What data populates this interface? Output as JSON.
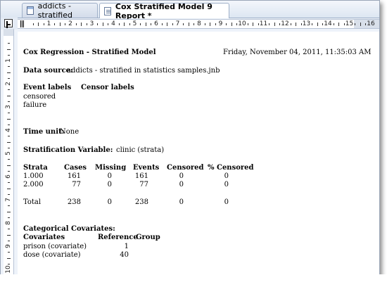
{
  "tabs": [
    {
      "label": "addicts - stratified",
      "active": false
    },
    {
      "label": "Cox Stratified Model 9 Report *",
      "active": true
    }
  ],
  "ruler": {
    "h_numbers": [
      "1",
      "2",
      "3",
      "4",
      "5",
      "6",
      "7",
      "8",
      "9",
      "10",
      "11",
      "12",
      "13",
      "14",
      "15",
      "16"
    ],
    "v_numbers": [
      "1",
      "2",
      "3",
      "4",
      "5",
      "6",
      "7",
      "8",
      "9",
      "10"
    ]
  },
  "report": {
    "title": "Cox Regression - Stratified Model",
    "timestamp": "Friday, November 04, 2011, 11:35:03 AM",
    "data_source_label": "Data source:",
    "data_source_value": "addicts - stratified in statistics samples.jnb",
    "event_labels_header": "Event labels",
    "censor_labels_header": "Censor labels",
    "event_labels": [
      "censored",
      "failure"
    ],
    "time_unit_label": "Time unit:",
    "time_unit_value": "None",
    "strat_var_label": "Stratification Variable:",
    "strat_var_value": "clinic (strata)",
    "strata_table": {
      "headers": [
        "Strata",
        "Cases",
        "Missing",
        "Events",
        "Censored",
        "% Censored"
      ],
      "rows": [
        [
          "1.000",
          "161",
          "0",
          "161",
          "0",
          "0"
        ],
        [
          "2.000",
          "77",
          "0",
          "77",
          "0",
          "0"
        ]
      ],
      "total": [
        "Total",
        "238",
        "0",
        "238",
        "0",
        "0"
      ]
    },
    "categorical_label": "Categorical Covariates:",
    "cov_table": {
      "headers": [
        "Covariates",
        "Reference",
        "Group"
      ],
      "rows": [
        [
          "prison (covariate)",
          "1"
        ],
        [
          "dose (covariate)",
          "40"
        ]
      ]
    }
  }
}
